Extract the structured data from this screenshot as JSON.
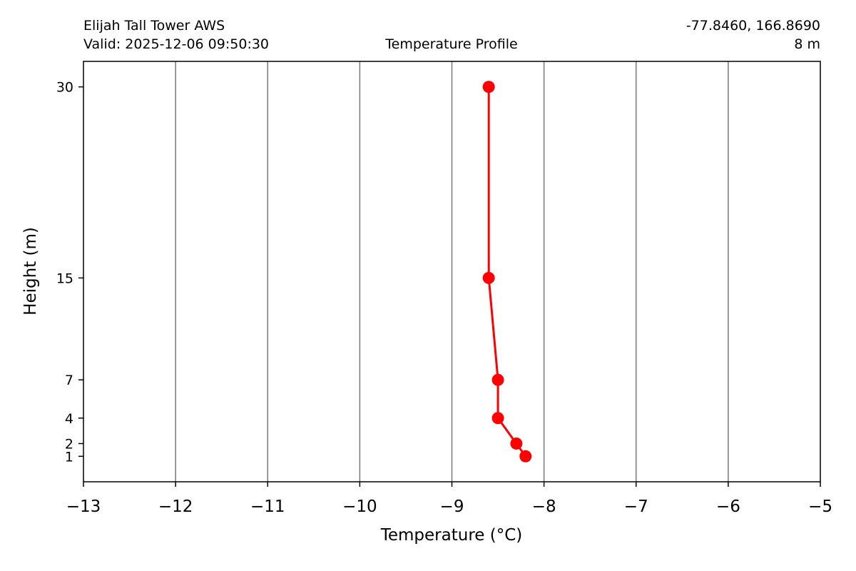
{
  "header": {
    "station": "Elijah Tall Tower AWS",
    "valid": "Valid: 2025-12-06 09:50:30",
    "title": "Temperature Profile",
    "coords": "-77.8460, 166.8690",
    "elevation": "8 m"
  },
  "chart_data": {
    "type": "line",
    "title": "Temperature Profile",
    "xlabel": "Temperature ($^\\circ$C)",
    "xlabel_display": "Temperature (°C)",
    "ylabel": "Height (m)",
    "xlim": [
      -13,
      -5
    ],
    "ylim": [
      -1,
      32
    ],
    "xticks": [
      -13,
      -12,
      -11,
      -10,
      -9,
      -8,
      -7,
      -6,
      -5
    ],
    "xtick_labels": [
      "−13",
      "−12",
      "−11",
      "−10",
      "−9",
      "−8",
      "−7",
      "−6",
      "−5"
    ],
    "yticks": [
      1,
      2,
      4,
      7,
      15,
      30
    ],
    "ytick_labels": [
      "1",
      "2",
      "4",
      "7",
      "15",
      "30"
    ],
    "grid": "vertical only",
    "series": [
      {
        "color": "#ff0000",
        "marker": "circle",
        "points": [
          {
            "temp": -8.2,
            "height": 1
          },
          {
            "temp": -8.3,
            "height": 2
          },
          {
            "temp": -8.5,
            "height": 4
          },
          {
            "temp": -8.5,
            "height": 7
          },
          {
            "temp": -8.6,
            "height": 15
          },
          {
            "temp": -8.6,
            "height": 30
          }
        ]
      }
    ]
  }
}
